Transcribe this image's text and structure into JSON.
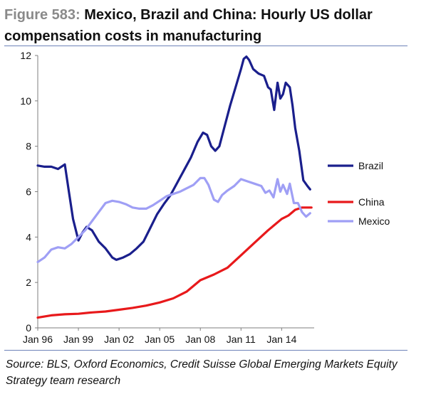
{
  "figure": {
    "label": "Figure 583:",
    "title": "Mexico, Brazil and China: Hourly US dollar compensation costs in manufacturing",
    "source": "Source: BLS, Oxford Economics, Credit Suisse Global Emerging Markets Equity Strategy team research"
  },
  "chart_data": {
    "type": "line",
    "title": "Mexico, Brazil and China: Hourly US dollar compensation costs in manufacturing",
    "xlabel": "",
    "ylabel": "",
    "xlim": [
      1996.0,
      2016.4
    ],
    "ylim": [
      0,
      12
    ],
    "y_ticks": [
      0,
      2,
      4,
      6,
      8,
      10,
      12
    ],
    "x_ticks": [
      {
        "value": 1996,
        "label": "Jan 96"
      },
      {
        "value": 1999,
        "label": "Jan 99"
      },
      {
        "value": 2002,
        "label": "Jan 02"
      },
      {
        "value": 2005,
        "label": "Jan 05"
      },
      {
        "value": 2008,
        "label": "Jan 08"
      },
      {
        "value": 2011,
        "label": "Jan 11"
      },
      {
        "value": 2014,
        "label": "Jan 14"
      }
    ],
    "grid": false,
    "legend_position": "right",
    "series": [
      {
        "name": "Brazil",
        "color": "#1a1f8c",
        "points": [
          [
            1996.0,
            7.15
          ],
          [
            1996.5,
            7.1
          ],
          [
            1997.0,
            7.1
          ],
          [
            1997.5,
            7.0
          ],
          [
            1998.0,
            7.2
          ],
          [
            1998.3,
            6.0
          ],
          [
            1998.6,
            4.8
          ],
          [
            1999.0,
            3.85
          ],
          [
            1999.3,
            4.2
          ],
          [
            1999.6,
            4.45
          ],
          [
            2000.0,
            4.3
          ],
          [
            2000.5,
            3.8
          ],
          [
            2001.0,
            3.5
          ],
          [
            2001.5,
            3.1
          ],
          [
            2001.8,
            3.0
          ],
          [
            2002.3,
            3.1
          ],
          [
            2002.8,
            3.25
          ],
          [
            2003.3,
            3.5
          ],
          [
            2003.8,
            3.8
          ],
          [
            2004.3,
            4.4
          ],
          [
            2004.8,
            5.0
          ],
          [
            2005.3,
            5.45
          ],
          [
            2005.8,
            5.85
          ],
          [
            2006.3,
            6.4
          ],
          [
            2006.8,
            6.95
          ],
          [
            2007.3,
            7.5
          ],
          [
            2007.8,
            8.2
          ],
          [
            2008.2,
            8.6
          ],
          [
            2008.5,
            8.5
          ],
          [
            2008.8,
            8.0
          ],
          [
            2009.1,
            7.8
          ],
          [
            2009.4,
            8.0
          ],
          [
            2009.8,
            8.9
          ],
          [
            2010.2,
            9.8
          ],
          [
            2010.6,
            10.6
          ],
          [
            2011.0,
            11.4
          ],
          [
            2011.2,
            11.85
          ],
          [
            2011.4,
            11.95
          ],
          [
            2011.6,
            11.8
          ],
          [
            2011.9,
            11.4
          ],
          [
            2012.3,
            11.2
          ],
          [
            2012.7,
            11.1
          ],
          [
            2013.0,
            10.6
          ],
          [
            2013.2,
            10.5
          ],
          [
            2013.45,
            9.6
          ],
          [
            2013.7,
            10.8
          ],
          [
            2013.9,
            10.1
          ],
          [
            2014.1,
            10.3
          ],
          [
            2014.3,
            10.8
          ],
          [
            2014.6,
            10.6
          ],
          [
            2014.8,
            9.8
          ],
          [
            2015.0,
            8.8
          ],
          [
            2015.3,
            7.8
          ],
          [
            2015.6,
            6.5
          ],
          [
            2015.9,
            6.25
          ],
          [
            2016.1,
            6.1
          ]
        ]
      },
      {
        "name": "China",
        "color": "#e8191b",
        "points": [
          [
            1996.0,
            0.45
          ],
          [
            1997.0,
            0.55
          ],
          [
            1998.0,
            0.6
          ],
          [
            1999.0,
            0.62
          ],
          [
            2000.0,
            0.68
          ],
          [
            2001.0,
            0.72
          ],
          [
            2002.0,
            0.8
          ],
          [
            2003.0,
            0.88
          ],
          [
            2004.0,
            0.98
          ],
          [
            2005.0,
            1.12
          ],
          [
            2006.0,
            1.3
          ],
          [
            2007.0,
            1.6
          ],
          [
            2008.0,
            2.1
          ],
          [
            2009.0,
            2.35
          ],
          [
            2010.0,
            2.65
          ],
          [
            2011.0,
            3.2
          ],
          [
            2012.0,
            3.75
          ],
          [
            2013.0,
            4.3
          ],
          [
            2014.0,
            4.8
          ],
          [
            2014.5,
            4.95
          ],
          [
            2015.0,
            5.2
          ],
          [
            2015.5,
            5.3
          ],
          [
            2016.2,
            5.3
          ]
        ]
      },
      {
        "name": "Mexico",
        "color": "#9f9ff5",
        "points": [
          [
            1996.0,
            2.9
          ],
          [
            1996.5,
            3.1
          ],
          [
            1997.0,
            3.45
          ],
          [
            1997.5,
            3.55
          ],
          [
            1998.0,
            3.5
          ],
          [
            1998.5,
            3.7
          ],
          [
            1999.0,
            4.0
          ],
          [
            1999.5,
            4.3
          ],
          [
            2000.0,
            4.7
          ],
          [
            2000.5,
            5.1
          ],
          [
            2001.0,
            5.5
          ],
          [
            2001.5,
            5.6
          ],
          [
            2002.0,
            5.55
          ],
          [
            2002.5,
            5.45
          ],
          [
            2003.0,
            5.3
          ],
          [
            2003.5,
            5.25
          ],
          [
            2004.0,
            5.25
          ],
          [
            2004.5,
            5.4
          ],
          [
            2005.0,
            5.6
          ],
          [
            2005.5,
            5.8
          ],
          [
            2006.0,
            5.9
          ],
          [
            2006.5,
            6.0
          ],
          [
            2007.0,
            6.15
          ],
          [
            2007.5,
            6.3
          ],
          [
            2008.0,
            6.6
          ],
          [
            2008.3,
            6.6
          ],
          [
            2008.6,
            6.3
          ],
          [
            2009.0,
            5.65
          ],
          [
            2009.3,
            5.55
          ],
          [
            2009.6,
            5.85
          ],
          [
            2010.0,
            6.05
          ],
          [
            2010.5,
            6.25
          ],
          [
            2011.0,
            6.55
          ],
          [
            2011.5,
            6.45
          ],
          [
            2012.0,
            6.35
          ],
          [
            2012.5,
            6.25
          ],
          [
            2012.8,
            5.95
          ],
          [
            2013.1,
            6.05
          ],
          [
            2013.4,
            5.75
          ],
          [
            2013.7,
            6.55
          ],
          [
            2013.9,
            6.0
          ],
          [
            2014.1,
            6.3
          ],
          [
            2014.4,
            5.9
          ],
          [
            2014.6,
            6.35
          ],
          [
            2014.9,
            5.5
          ],
          [
            2015.2,
            5.5
          ],
          [
            2015.5,
            5.1
          ],
          [
            2015.8,
            4.9
          ],
          [
            2016.1,
            5.05
          ]
        ]
      }
    ]
  }
}
